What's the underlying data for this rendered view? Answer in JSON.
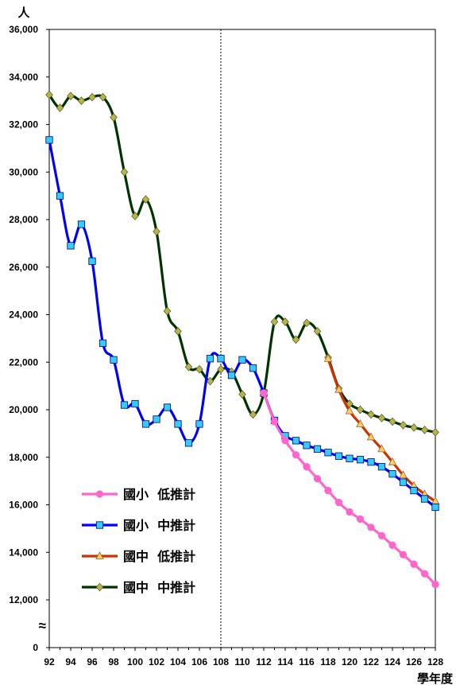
{
  "chart_data": {
    "type": "line",
    "ylabel": "人",
    "xlabel": "學年度",
    "ylim": [
      0,
      36000
    ],
    "y_ticks": [
      0,
      12000,
      14000,
      16000,
      18000,
      20000,
      22000,
      24000,
      26000,
      28000,
      30000,
      32000,
      34000,
      36000
    ],
    "y_tick_labels": [
      "0",
      "12,000",
      "14,000",
      "16,000",
      "18,000",
      "20,000",
      "22,000",
      "24,000",
      "26,000",
      "28,000",
      "30,000",
      "32,000",
      "34,000",
      "36,000"
    ],
    "axis_break_symbol": "≈",
    "x_ticks": [
      92,
      94,
      96,
      98,
      100,
      102,
      104,
      106,
      108,
      110,
      112,
      114,
      116,
      118,
      120,
      122,
      124,
      126,
      128
    ],
    "x_tick_labels": [
      "92",
      "94",
      "96",
      "98",
      "100",
      "102",
      "104",
      "106",
      "108",
      "110",
      "112",
      "114",
      "116",
      "118",
      "120",
      "122",
      "124",
      "126",
      "128"
    ],
    "xlim": [
      92,
      128
    ],
    "divider_x": 108,
    "legend_position": "bottom-left",
    "series": [
      {
        "name": "國小  低推計",
        "color": "#ff66cc",
        "marker": "circle",
        "marker_fill": "#ff66cc",
        "x": [
          112,
          113,
          114,
          115,
          116,
          117,
          118,
          119,
          120,
          121,
          122,
          123,
          124,
          125,
          126,
          127,
          128
        ],
        "values": [
          20700,
          19500,
          18700,
          18100,
          17600,
          17100,
          16600,
          16100,
          15700,
          15400,
          15050,
          14700,
          14300,
          13900,
          13500,
          13100,
          12650
        ]
      },
      {
        "name": "國小  中推計",
        "color": "#0000ff",
        "marker": "square",
        "marker_fill": "#33ccff",
        "x": [
          92,
          93,
          94,
          95,
          96,
          97,
          98,
          99,
          100,
          101,
          102,
          103,
          104,
          105,
          106,
          107,
          108,
          109,
          110,
          111,
          112,
          113,
          114,
          115,
          116,
          117,
          118,
          119,
          120,
          121,
          122,
          123,
          124,
          125,
          126,
          127,
          128
        ],
        "values": [
          31350,
          29000,
          26900,
          27800,
          26250,
          22800,
          22100,
          20200,
          20250,
          19400,
          19600,
          20100,
          19400,
          18600,
          19400,
          22150,
          22150,
          21450,
          22100,
          21750,
          20700,
          19550,
          18900,
          18700,
          18500,
          18350,
          18200,
          18050,
          17950,
          17900,
          17800,
          17600,
          17300,
          16950,
          16600,
          16250,
          15900
        ]
      },
      {
        "name": "國中  低推計",
        "color": "#cc3300",
        "marker": "triangle",
        "marker_fill": "#ffcc66",
        "x": [
          118,
          119,
          120,
          121,
          122,
          123,
          124,
          125,
          126,
          127,
          128
        ],
        "values": [
          22150,
          20850,
          19950,
          19400,
          18850,
          18350,
          17800,
          17250,
          16800,
          16450,
          16150
        ]
      },
      {
        "name": "國中  中推計",
        "color": "#003300",
        "marker": "diamond",
        "marker_fill": "#b5b54a",
        "x": [
          92,
          93,
          94,
          95,
          96,
          97,
          98,
          99,
          100,
          101,
          102,
          103,
          104,
          105,
          106,
          107,
          108,
          109,
          110,
          111,
          112,
          113,
          114,
          115,
          116,
          117,
          118,
          119,
          120,
          121,
          122,
          123,
          124,
          125,
          126,
          127,
          128
        ],
        "values": [
          33250,
          32700,
          33200,
          33000,
          33150,
          33150,
          32300,
          30000,
          28150,
          28850,
          27500,
          24150,
          23300,
          21800,
          21700,
          21200,
          21700,
          21600,
          20650,
          19800,
          20700,
          23700,
          23700,
          22950,
          23650,
          23300,
          22200,
          20900,
          20250,
          20000,
          19800,
          19650,
          19500,
          19350,
          19250,
          19150,
          19050
        ]
      }
    ]
  }
}
